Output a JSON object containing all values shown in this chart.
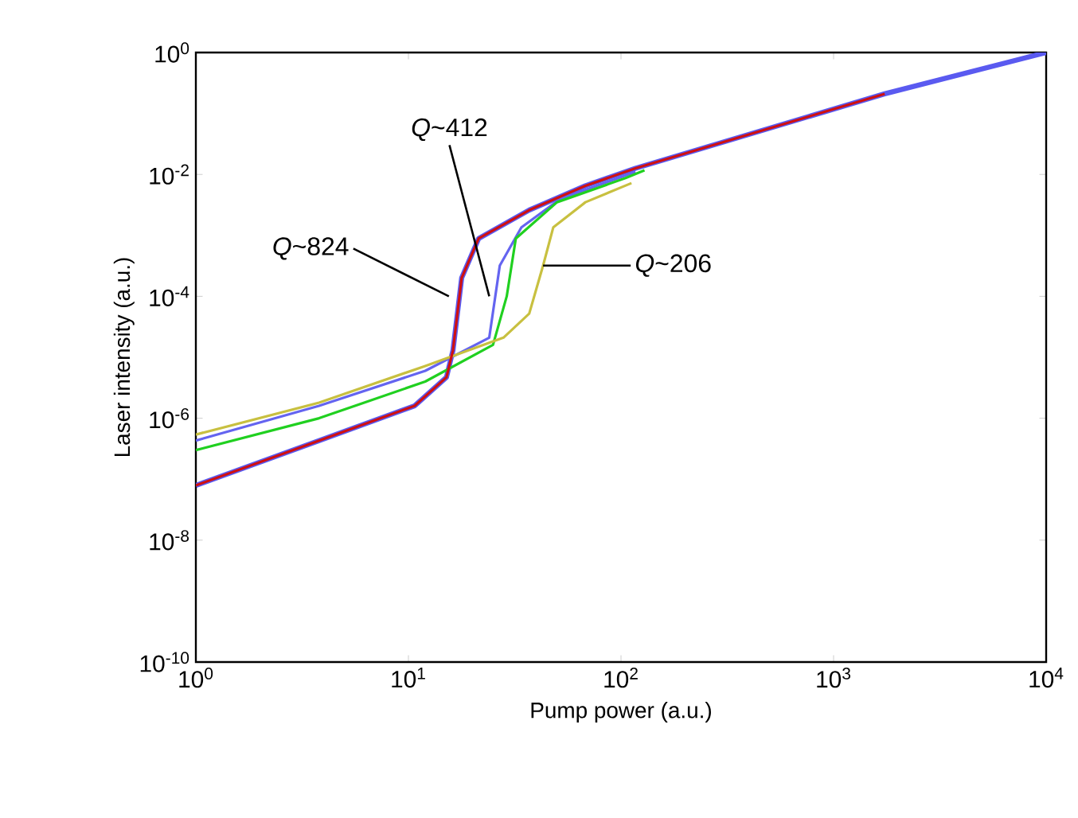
{
  "chart_data": {
    "type": "line",
    "xlabel": "Pump power (a.u.)",
    "ylabel": "Laser intensity (a.u.)",
    "log": "xy",
    "xlim": [
      1,
      10000
    ],
    "ylim": [
      1e-10,
      1
    ],
    "xticks": [
      {
        "value": 1,
        "label": "10$^{0}$"
      },
      {
        "value": 10,
        "label": "10$^{1}$"
      },
      {
        "value": 100,
        "label": "10$^{2}$"
      },
      {
        "value": 1000,
        "label": "10$^{3}$"
      },
      {
        "value": 10000,
        "label": "10$^{4}$"
      }
    ],
    "yticks": [
      {
        "value": 1e-10,
        "label": "10$^{-10}$"
      },
      {
        "value": 1e-08,
        "label": "10$^{-8}$"
      },
      {
        "value": 1e-06,
        "label": "10$^{-6}$"
      },
      {
        "value": 0.0001,
        "label": "10$^{-4}$"
      },
      {
        "value": 0.01,
        "label": "10$^{-2}$"
      },
      {
        "value": 1,
        "label": "10$^{0}$"
      }
    ],
    "grid": false,
    "marker": "none",
    "line_style": "solid",
    "series": [
      {
        "color": "#5a5af0",
        "x": [
          1,
          3.8,
          10.7,
          15.1,
          16.2,
          17.8,
          21.4,
          37,
          68,
          117,
          1740,
          10000
        ],
        "values": [
          7.9e-08,
          4.3e-07,
          1.6e-06,
          4.7e-06,
          1.3e-05,
          0.0002,
          0.00089,
          0.0026,
          0.0065,
          0.0126,
          0.21,
          1
        ]
      },
      {
        "color": "#6464f0",
        "x": [
          1,
          3.8,
          12,
          24,
          26.9,
          34,
          52,
          117
        ],
        "values": [
          4.3e-07,
          1.6e-06,
          6e-06,
          2.1e-05,
          0.00032,
          0.00135,
          0.004,
          0.011
        ]
      },
      {
        "color": "#20d020",
        "x": [
          1,
          3.8,
          12,
          25,
          29,
          32,
          50,
          105,
          129
        ],
        "values": [
          3e-07,
          1e-06,
          4e-06,
          1.6e-05,
          0.0001,
          0.00089,
          0.0035,
          0.0087,
          0.0117
        ]
      },
      {
        "color": "#c8c040",
        "x": [
          1,
          3.8,
          12,
          28,
          37,
          43,
          48,
          68,
          112
        ],
        "values": [
          5.4e-07,
          1.8e-06,
          7.2e-06,
          2.1e-05,
          5.2e-05,
          0.00032,
          0.00135,
          0.0035,
          0.0072
        ]
      },
      {
        "color": "#d01010",
        "x": [
          1,
          3.8,
          10.7,
          15.1,
          16.2,
          17.8,
          21.4,
          37,
          68,
          117,
          1740
        ],
        "values": [
          7.9e-08,
          4.3e-07,
          1.6e-06,
          4.7e-06,
          1.3e-05,
          0.0002,
          0.00089,
          0.0026,
          0.0065,
          0.0126,
          0.21
        ]
      }
    ],
    "annotations": [
      {
        "text": "*Q*~824",
        "x": 15.5,
        "y": 0.0001
      },
      {
        "text": "*Q*~412",
        "x": 24,
        "y": 0.0001
      },
      {
        "text": "*Q*~206",
        "x": 43,
        "y": 0.00032
      }
    ]
  }
}
